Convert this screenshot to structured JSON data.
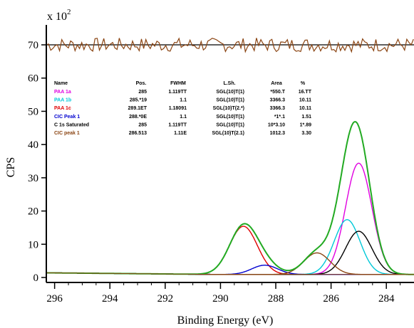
{
  "chart_data": {
    "type": "line",
    "scale_label": "x 10",
    "scale_exponent": "2",
    "xlabel": "Binding Energy (eV)",
    "ylabel": "CPS",
    "x_reversed": true,
    "xlim": [
      296.3,
      283.0
    ],
    "ylim": [
      -1.5,
      76
    ],
    "x_ticks": [
      296,
      294,
      292,
      290,
      288,
      286,
      284
    ],
    "y_ticks": [
      0,
      10,
      20,
      30,
      40,
      50,
      60,
      70
    ],
    "residual_baseline": 70,
    "legend_table": {
      "headers": [
        "Name",
        "Pos.",
        "FWHM",
        "L.Sh.",
        "Area",
        "%"
      ],
      "rows": [
        {
          "name": "PAA 1a",
          "pos": "285",
          "fwhm": "1.119TT",
          "lsh": "SGL(10)T(1)",
          "area": "*550.T",
          "pct": "16.TT",
          "color": "#e000e0"
        },
        {
          "name": "PAA 1b",
          "pos": "285.*19",
          "fwhm": "1.1",
          "lsh": "SGL(10)T(1)",
          "area": "3366.3",
          "pct": "10.11",
          "color": "#00c8d8"
        },
        {
          "name": "PAA 1c",
          "pos": "289.1ET",
          "fwhm": "1.18091",
          "lsh": "SGL(10)T(2.*)",
          "area": "3366.3",
          "pct": "10.11",
          "color": "#e00000"
        },
        {
          "name": "CIC Peak 1",
          "pos": "288.*0E",
          "fwhm": "1.1",
          "lsh": "SGL(10)T(1)",
          "area": "*1*.1",
          "pct": "1.51",
          "color": "#0000d0"
        },
        {
          "name": "C 1s Saturated",
          "pos": "285",
          "fwhm": "1.119TT",
          "lsh": "SGL(10)T(1)",
          "area": "10*3.10",
          "pct": "1*.89",
          "color": "#000000"
        },
        {
          "name": "CIC peak 1",
          "pos": "286.513",
          "fwhm": "1.11E",
          "lsh": "SGL(10)T(2.1)",
          "area": "1012.3",
          "pct": "3.30",
          "color": "#8b4513"
        }
      ]
    },
    "series": [
      {
        "name": "PAA 1a",
        "color": "#e000e0",
        "center": 285.0,
        "amplitude": 33.5,
        "fwhm": 1.12
      },
      {
        "name": "PAA 1b",
        "color": "#00c8d8",
        "center": 285.42,
        "amplitude": 16.5,
        "fwhm": 1.1
      },
      {
        "name": "PAA 1c",
        "color": "#e00000",
        "center": 289.17,
        "amplitude": 14.5,
        "fwhm": 1.18
      },
      {
        "name": "CIC Peak 1",
        "color": "#0000d0",
        "center": 288.4,
        "amplitude": 2.8,
        "fwhm": 1.1
      },
      {
        "name": "C 1s Saturated",
        "color": "#000000",
        "center": 285.0,
        "amplitude": 13.0,
        "fwhm": 1.12
      },
      {
        "name": "CIC peak 1",
        "color": "#8b4513",
        "center": 286.51,
        "amplitude": 6.5,
        "fwhm": 1.12
      }
    ],
    "envelope_color": "#22aa22",
    "residual_color": "#8b4513"
  }
}
